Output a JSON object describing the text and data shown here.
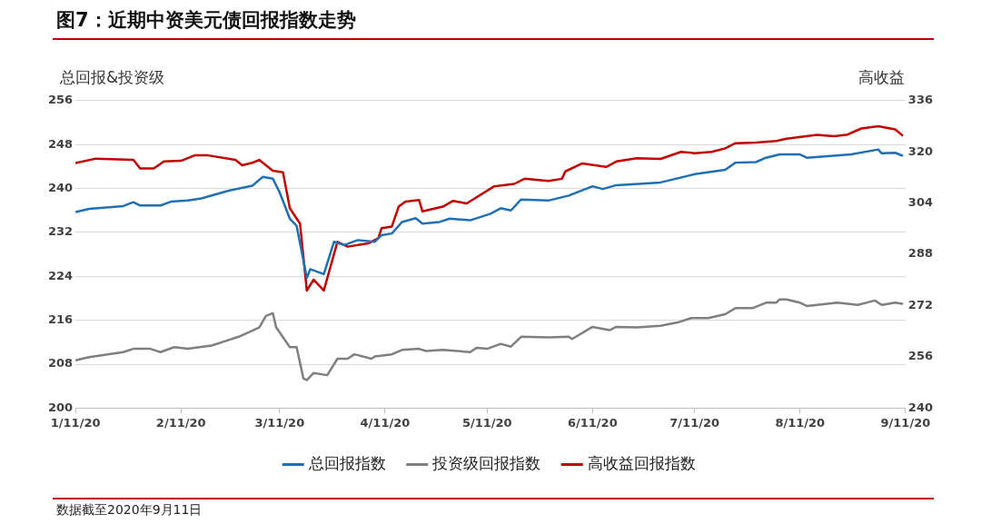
{
  "chart_data": {
    "type": "line",
    "title": "图7：近期中资美元债回报指数走势",
    "ylabel": "总回报&投资级",
    "y2label": "高收益",
    "annotations": [
      "数据截至2020年9月11日"
    ],
    "xlim": [
      "2020-01-11",
      "2020-09-11"
    ],
    "xticks": [
      {
        "value": "2020-01-11",
        "label": "1/11/20"
      },
      {
        "value": "2020-02-11",
        "label": "2/11/20"
      },
      {
        "value": "2020-03-11",
        "label": "3/11/20"
      },
      {
        "value": "2020-04-11",
        "label": "4/11/20"
      },
      {
        "value": "2020-05-11",
        "label": "5/11/20"
      },
      {
        "value": "2020-06-11",
        "label": "6/11/20"
      },
      {
        "value": "2020-07-11",
        "label": "7/11/20"
      },
      {
        "value": "2020-08-11",
        "label": "8/11/20"
      },
      {
        "value": "2020-09-11",
        "label": "9/11/20"
      }
    ],
    "ylim": [
      200,
      256
    ],
    "yticks": [
      200,
      208,
      216,
      224,
      232,
      240,
      248,
      256
    ],
    "y2lim": [
      240,
      336
    ],
    "y2ticks": [
      240,
      256,
      272,
      288,
      304,
      320,
      336
    ],
    "grid": "y",
    "legend": "bottom",
    "marker": "none",
    "line_style": "solid",
    "series": [
      {
        "name": "总回报指数",
        "color": "#1f6fb5",
        "x": [
          "2020-01-11",
          "2020-01-15",
          "2020-01-25",
          "2020-01-28",
          "2020-01-30",
          "2020-02-05",
          "2020-02-08",
          "2020-02-13",
          "2020-02-17",
          "2020-02-25",
          "2020-03-03",
          "2020-03-06",
          "2020-03-09",
          "2020-03-11",
          "2020-03-14",
          "2020-03-16",
          "2020-03-19",
          "2020-03-20",
          "2020-03-24",
          "2020-03-27",
          "2020-03-30",
          "2020-04-03",
          "2020-04-08",
          "2020-04-10",
          "2020-04-13",
          "2020-04-16",
          "2020-04-20",
          "2020-04-22",
          "2020-04-27",
          "2020-04-30",
          "2020-05-06",
          "2020-05-12",
          "2020-05-15",
          "2020-05-18",
          "2020-05-21",
          "2020-05-29",
          "2020-06-04",
          "2020-06-11",
          "2020-06-14",
          "2020-06-18",
          "2020-07-01",
          "2020-07-11",
          "2020-07-20",
          "2020-07-23",
          "2020-07-29",
          "2020-08-01",
          "2020-08-05",
          "2020-08-11",
          "2020-08-13",
          "2020-08-26",
          "2020-09-03",
          "2020-09-04",
          "2020-09-08",
          "2020-09-10"
        ],
        "values": [
          235.7,
          236.3,
          236.8,
          237.5,
          236.9,
          236.9,
          237.6,
          237.8,
          238.2,
          239.6,
          240.5,
          242.1,
          241.8,
          239.3,
          234.5,
          233.2,
          223.7,
          225.3,
          224.4,
          230.3,
          229.7,
          230.6,
          230.3,
          231.5,
          231.8,
          233.9,
          234.6,
          233.6,
          233.9,
          234.5,
          234.2,
          235.4,
          236.4,
          236.0,
          238.0,
          237.8,
          238.7,
          240.4,
          239.9,
          240.6,
          241.1,
          242.6,
          243.4,
          244.7,
          244.8,
          245.6,
          246.2,
          246.2,
          245.6,
          246.2,
          247.1,
          246.4,
          246.5,
          246.0
        ]
      },
      {
        "name": "投资级回报指数",
        "color": "#7f7f7f",
        "x": [
          "2020-01-11",
          "2020-01-15",
          "2020-01-25",
          "2020-01-28",
          "2020-02-02",
          "2020-02-05",
          "2020-02-09",
          "2020-02-13",
          "2020-02-20",
          "2020-02-28",
          "2020-03-05",
          "2020-03-07",
          "2020-03-09",
          "2020-03-10",
          "2020-03-14",
          "2020-03-16",
          "2020-03-18",
          "2020-03-19",
          "2020-03-21",
          "2020-03-25",
          "2020-03-28",
          "2020-03-31",
          "2020-04-02",
          "2020-04-07",
          "2020-04-08",
          "2020-04-13",
          "2020-04-16",
          "2020-04-21",
          "2020-04-23",
          "2020-04-28",
          "2020-05-06",
          "2020-05-08",
          "2020-05-11",
          "2020-05-15",
          "2020-05-18",
          "2020-05-21",
          "2020-05-29",
          "2020-06-04",
          "2020-06-05",
          "2020-06-11",
          "2020-06-16",
          "2020-06-18",
          "2020-06-24",
          "2020-07-01",
          "2020-07-06",
          "2020-07-10",
          "2020-07-15",
          "2020-07-20",
          "2020-07-23",
          "2020-07-28",
          "2020-08-01",
          "2020-08-04",
          "2020-08-05",
          "2020-08-07",
          "2020-08-11",
          "2020-08-13",
          "2020-08-22",
          "2020-08-28",
          "2020-09-02",
          "2020-09-04",
          "2020-09-08",
          "2020-09-10"
        ],
        "values": [
          208.7,
          209.3,
          210.2,
          210.8,
          210.8,
          210.2,
          211.1,
          210.8,
          211.4,
          213.0,
          214.7,
          216.8,
          217.3,
          214.7,
          211.1,
          211.1,
          205.4,
          205.1,
          206.4,
          206.0,
          209.0,
          209.0,
          209.8,
          209.0,
          209.4,
          209.8,
          210.6,
          210.8,
          210.4,
          210.6,
          210.2,
          211.0,
          210.8,
          211.7,
          211.2,
          213.0,
          212.9,
          213.0,
          212.6,
          214.8,
          214.2,
          214.8,
          214.7,
          215.0,
          215.6,
          216.4,
          216.4,
          217.1,
          218.2,
          218.2,
          219.2,
          219.2,
          219.8,
          219.8,
          219.2,
          218.6,
          219.2,
          218.8,
          219.6,
          218.8,
          219.2,
          219.0
        ]
      },
      {
        "name": "高收益回报指数",
        "color": "#c00000",
        "axis": "y2",
        "x": [
          "2020-01-11",
          "2020-01-17",
          "2020-01-28",
          "2020-01-30",
          "2020-02-03",
          "2020-02-06",
          "2020-02-11",
          "2020-02-15",
          "2020-02-19",
          "2020-02-27",
          "2020-02-29",
          "2020-03-03",
          "2020-03-05",
          "2020-03-09",
          "2020-03-12",
          "2020-03-14",
          "2020-03-17",
          "2020-03-19",
          "2020-03-21",
          "2020-03-24",
          "2020-03-28",
          "2020-03-31",
          "2020-04-06",
          "2020-04-09",
          "2020-04-10",
          "2020-04-13",
          "2020-04-15",
          "2020-04-17",
          "2020-04-21",
          "2020-04-22",
          "2020-04-28",
          "2020-05-01",
          "2020-05-05",
          "2020-05-13",
          "2020-05-19",
          "2020-05-22",
          "2020-05-29",
          "2020-06-02",
          "2020-06-03",
          "2020-06-08",
          "2020-06-15",
          "2020-06-18",
          "2020-06-24",
          "2020-07-01",
          "2020-07-07",
          "2020-07-11",
          "2020-07-16",
          "2020-07-20",
          "2020-07-23",
          "2020-07-29",
          "2020-08-04",
          "2020-08-07",
          "2020-08-16",
          "2020-08-21",
          "2020-08-25",
          "2020-08-29",
          "2020-09-03",
          "2020-09-08",
          "2020-09-10"
        ],
        "values": [
          316.5,
          317.9,
          317.5,
          314.8,
          314.8,
          317.0,
          317.2,
          318.9,
          318.9,
          317.5,
          315.8,
          316.6,
          317.5,
          314.1,
          313.6,
          302.4,
          297.6,
          276.7,
          280.1,
          276.7,
          291.9,
          290.4,
          291.4,
          293.0,
          296.2,
          296.7,
          302.9,
          304.5,
          305.0,
          301.4,
          302.9,
          304.7,
          303.9,
          309.2,
          310.0,
          311.6,
          310.9,
          311.6,
          313.9,
          316.4,
          315.3,
          317.0,
          318.0,
          317.8,
          320.0,
          319.6,
          320.0,
          321.1,
          322.7,
          322.9,
          323.4,
          324.1,
          325.3,
          324.9,
          325.4,
          327.3,
          328.0,
          327.0,
          325.2
        ]
      }
    ]
  }
}
